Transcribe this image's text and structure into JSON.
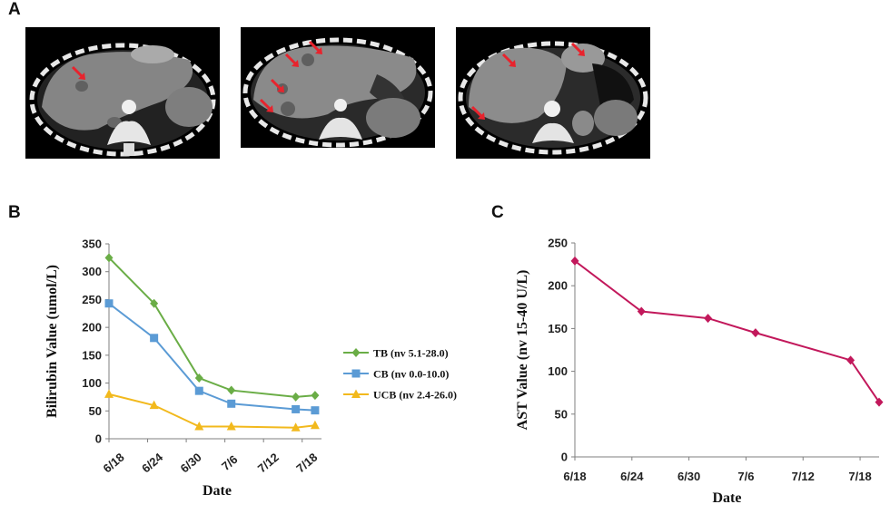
{
  "panels": {
    "a": "A",
    "b": "B",
    "c": "C"
  },
  "colors": {
    "tb": "#6aad46",
    "cb": "#5b9bd5",
    "ucb": "#f2b91d",
    "ast": "#c2185b",
    "arrow": "#e8232d"
  },
  "chart_data": [
    {
      "type": "line",
      "panel": "B",
      "xlabel": "Date",
      "ylabel": "Bilirubin Value (umol/L)",
      "ylim": [
        0,
        350
      ],
      "yticks": [
        "0",
        "50",
        "100",
        "150",
        "200",
        "250",
        "300",
        "350"
      ],
      "xlim": [
        0,
        33
      ],
      "xticks": [
        "6/18",
        "6/24",
        "6/30",
        "7/6",
        "7/12",
        "7/18"
      ],
      "xtick_days": [
        0,
        6,
        12,
        18,
        24,
        30
      ],
      "legend_position": "right",
      "series": [
        {
          "name": "TB (nv 5.1-28.0)",
          "marker": "diamond",
          "x": [
            0,
            7,
            14,
            19,
            29,
            32
          ],
          "values": [
            325,
            243,
            109,
            87,
            75,
            78
          ]
        },
        {
          "name": "CB (nv 0.0-10.0)",
          "marker": "square",
          "x": [
            0,
            7,
            14,
            19,
            29,
            32
          ],
          "values": [
            243,
            181,
            86,
            63,
            53,
            51
          ]
        },
        {
          "name": "UCB (nv 2.4-26.0)",
          "marker": "triangle",
          "x": [
            0,
            7,
            14,
            19,
            29,
            32
          ],
          "values": [
            80,
            60,
            22,
            22,
            20,
            24
          ]
        }
      ]
    },
    {
      "type": "line",
      "panel": "C",
      "xlabel": "Date",
      "ylabel": "AST Value (nv 15-40 U/L)",
      "ylim": [
        0,
        250
      ],
      "yticks": [
        "0",
        "50",
        "100",
        "150",
        "200",
        "250"
      ],
      "xlim": [
        0,
        32
      ],
      "xticks": [
        "6/18",
        "6/24",
        "6/30",
        "7/6",
        "7/12",
        "7/18"
      ],
      "xtick_days": [
        0,
        6,
        12,
        18,
        24,
        30
      ],
      "series": [
        {
          "name": "AST",
          "marker": "diamond",
          "x": [
            0,
            7,
            14,
            19,
            29,
            32
          ],
          "values": [
            229,
            170,
            162,
            145,
            113,
            64
          ]
        }
      ]
    }
  ]
}
